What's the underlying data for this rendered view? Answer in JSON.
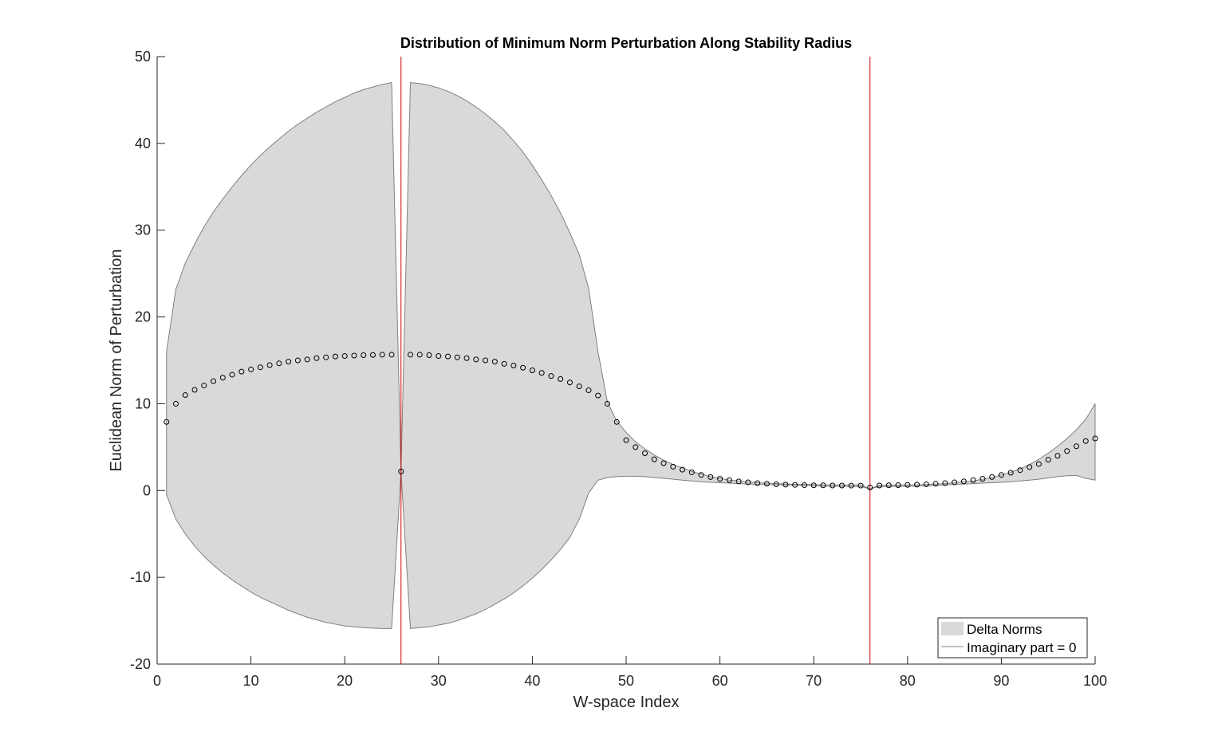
{
  "chart_data": {
    "type": "area",
    "title": "Distribution of Minimum Norm Perturbation Along Stability Radius",
    "xlabel": "W-space Index",
    "ylabel": "Euclidean Norm of Perturbation",
    "xlim": [
      0,
      100
    ],
    "ylim": [
      -20,
      50
    ],
    "xticks": [
      0,
      10,
      20,
      30,
      40,
      50,
      60,
      70,
      80,
      90,
      100
    ],
    "yticks": [
      -20,
      -10,
      0,
      10,
      20,
      30,
      40,
      50
    ],
    "grid": false,
    "legend_placement": "bottom-right",
    "legend": [
      {
        "label": "Delta Norms",
        "kind": "patch",
        "color": "#d9d9d9"
      },
      {
        "label": "Imaginary part = 0",
        "kind": "line",
        "color": "#808080"
      }
    ],
    "vertical_lines": {
      "x": [
        26,
        76
      ],
      "color": "#cc0000"
    },
    "fill_color": "#d9d9d9",
    "fill_edge_color": "#808080",
    "marker_color": "#000000",
    "bands": [
      {
        "name": "Delta Norms",
        "x": [
          1,
          2,
          3,
          4,
          5,
          6,
          7,
          8,
          9,
          10,
          11,
          12,
          13,
          14,
          15,
          16,
          17,
          18,
          19,
          20,
          21,
          22,
          23,
          24,
          25,
          26,
          27,
          28,
          29,
          30,
          31,
          32,
          33,
          34,
          35,
          36,
          37,
          38,
          39,
          40,
          41,
          42,
          43,
          44,
          45,
          46,
          47,
          48,
          49,
          50,
          51,
          52,
          53,
          54,
          55,
          56,
          57,
          58,
          59,
          60,
          61,
          62,
          63,
          64,
          65,
          66,
          67,
          68,
          69,
          70,
          71,
          72,
          73,
          74,
          75,
          76,
          77,
          78,
          79,
          80,
          81,
          82,
          83,
          84,
          85,
          86,
          87,
          88,
          89,
          90,
          91,
          92,
          93,
          94,
          95,
          96,
          97,
          98,
          99,
          100
        ],
        "upper": [
          16,
          23.2,
          26.2,
          28.4,
          30.4,
          32.1,
          33.6,
          35,
          36.3,
          37.5,
          38.6,
          39.6,
          40.5,
          41.4,
          42.2,
          42.9,
          43.6,
          44.2,
          44.8,
          45.3,
          45.8,
          46.2,
          46.5,
          46.8,
          47,
          2.2,
          47,
          46.9,
          46.7,
          46.4,
          46,
          45.5,
          44.9,
          44.2,
          43.4,
          42.5,
          41.5,
          40.3,
          39,
          37.5,
          35.8,
          34,
          32,
          29.7,
          27.2,
          23.3,
          16,
          10.2,
          8,
          6.7,
          5.6,
          4.8,
          4.1,
          3.5,
          3,
          2.6,
          2.2,
          1.9,
          1.6,
          1.4,
          1.2,
          1.1,
          1,
          0.9,
          0.85,
          0.8,
          0.75,
          0.7,
          0.7,
          0.68,
          0.65,
          0.65,
          0.65,
          0.65,
          0.65,
          0.2,
          0.6,
          0.62,
          0.63,
          0.64,
          0.66,
          0.7,
          0.75,
          0.8,
          0.9,
          1,
          1.1,
          1.3,
          1.5,
          1.8,
          2.1,
          2.5,
          3,
          3.6,
          4.3,
          5.1,
          6,
          7,
          8.2,
          10
        ],
        "lower": [
          -0.5,
          -3.3,
          -5,
          -6.4,
          -7.6,
          -8.6,
          -9.5,
          -10.3,
          -11,
          -11.7,
          -12.3,
          -12.8,
          -13.3,
          -13.8,
          -14.2,
          -14.6,
          -14.9,
          -15.2,
          -15.4,
          -15.6,
          -15.7,
          -15.8,
          -15.85,
          -15.9,
          -15.9,
          2.2,
          -15.9,
          -15.8,
          -15.7,
          -15.5,
          -15.3,
          -15,
          -14.6,
          -14.2,
          -13.7,
          -13.1,
          -12.5,
          -11.8,
          -11,
          -10.1,
          -9.1,
          -8,
          -6.8,
          -5.4,
          -3.3,
          -0.3,
          1.2,
          1.5,
          1.6,
          1.65,
          1.65,
          1.6,
          1.5,
          1.4,
          1.3,
          1.2,
          1.1,
          1,
          0.95,
          0.9,
          0.85,
          0.8,
          0.75,
          0.7,
          0.68,
          0.66,
          0.64,
          0.62,
          0.6,
          0.55,
          0.5,
          0.48,
          0.47,
          0.46,
          0.45,
          0.2,
          0.45,
          0.46,
          0.47,
          0.48,
          0.5,
          0.55,
          0.6,
          0.65,
          0.7,
          0.75,
          0.8,
          0.85,
          0.9,
          0.95,
          1,
          1.1,
          1.2,
          1.3,
          1.45,
          1.6,
          1.7,
          1.75,
          1.4,
          1.2
        ]
      }
    ],
    "series": [
      {
        "name": "",
        "kind": "scatter",
        "marker": "circle-open",
        "x": [
          1,
          2,
          3,
          4,
          5,
          6,
          7,
          8,
          9,
          10,
          11,
          12,
          13,
          14,
          15,
          16,
          17,
          18,
          19,
          20,
          21,
          22,
          23,
          24,
          25,
          26,
          27,
          28,
          29,
          30,
          31,
          32,
          33,
          34,
          35,
          36,
          37,
          38,
          39,
          40,
          41,
          42,
          43,
          44,
          45,
          46,
          47,
          48,
          49,
          50,
          51,
          52,
          53,
          54,
          55,
          56,
          57,
          58,
          59,
          60,
          61,
          62,
          63,
          64,
          65,
          66,
          67,
          68,
          69,
          70,
          71,
          72,
          73,
          74,
          75,
          76,
          77,
          78,
          79,
          80,
          81,
          82,
          83,
          84,
          85,
          86,
          87,
          88,
          89,
          90,
          91,
          92,
          93,
          94,
          95,
          96,
          97,
          98,
          99,
          100
        ],
        "y": [
          7.9,
          10,
          11,
          11.6,
          12.1,
          12.6,
          13,
          13.35,
          13.7,
          13.95,
          14.2,
          14.45,
          14.65,
          14.85,
          15,
          15.1,
          15.25,
          15.35,
          15.45,
          15.5,
          15.55,
          15.6,
          15.62,
          15.65,
          15.65,
          2.2,
          15.65,
          15.65,
          15.6,
          15.5,
          15.45,
          15.35,
          15.25,
          15.1,
          15,
          14.85,
          14.6,
          14.4,
          14.15,
          13.85,
          13.55,
          13.2,
          12.85,
          12.45,
          12,
          11.55,
          10.95,
          10,
          7.9,
          5.8,
          5,
          4.3,
          3.6,
          3.15,
          2.75,
          2.4,
          2.1,
          1.8,
          1.55,
          1.35,
          1.2,
          1.05,
          0.95,
          0.85,
          0.78,
          0.72,
          0.68,
          0.65,
          0.62,
          0.6,
          0.6,
          0.58,
          0.58,
          0.57,
          0.57,
          0.35,
          0.58,
          0.6,
          0.62,
          0.65,
          0.68,
          0.72,
          0.78,
          0.85,
          0.95,
          1.05,
          1.2,
          1.35,
          1.55,
          1.8,
          2.05,
          2.35,
          2.7,
          3.05,
          3.55,
          4,
          4.55,
          5.1,
          5.7,
          6
        ]
      }
    ]
  }
}
